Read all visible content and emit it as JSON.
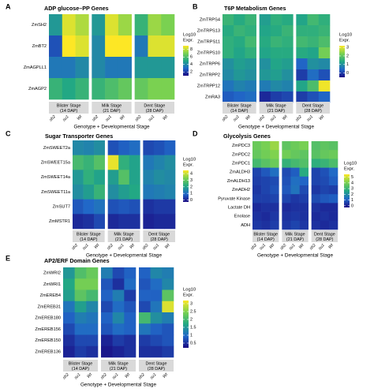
{
  "figure": {
    "x_axis_title": "Genotype + Developmental Stage",
    "genotypes": [
      "sh2",
      "su1",
      "WI"
    ],
    "stages": [
      [
        "Blister Stage",
        "(14 DAP)"
      ],
      [
        "Milk Stage",
        "(21 DAP)"
      ],
      [
        "Dent Stage",
        "(28 DAP)"
      ]
    ],
    "legend_title": [
      "Log10",
      "Expr."
    ],
    "colors": {
      "low": "#1a0a82",
      "mid1": "#2168c8",
      "mid2": "#22a884",
      "mid3": "#7ad151",
      "high": "#fde725",
      "facet_strip": "#d9d9d9"
    }
  },
  "chart_data": [
    {
      "type": "heatmap",
      "panel": "A",
      "title": "ADP glucose–PP Genes",
      "genes": [
        "ZmSH2",
        "ZmBT2",
        "ZmAGPLL1",
        "ZmAGP2"
      ],
      "legend_ticks": [
        8,
        6,
        4,
        2
      ],
      "zlim": [
        1,
        9
      ],
      "values": [
        [
          [
            4.5,
            8.5,
            7.8
          ],
          [
            4.5,
            8.5,
            7.5
          ],
          [
            5.5,
            7.5,
            7.0
          ]
        ],
        [
          [
            2.5,
            9.0,
            8.5
          ],
          [
            4.0,
            9.0,
            9.0
          ],
          [
            3.5,
            8.5,
            8.5
          ]
        ],
        [
          [
            3.5,
            3.5,
            4.0
          ],
          [
            4.0,
            3.5,
            3.5
          ],
          [
            4.5,
            4.5,
            4.5
          ]
        ],
        [
          [
            5.5,
            5.0,
            5.5
          ],
          [
            5.5,
            6.0,
            6.5
          ],
          [
            6.5,
            7.0,
            7.0
          ]
        ]
      ]
    },
    {
      "type": "heatmap",
      "panel": "B",
      "title": "T6P Metabolism Genes",
      "genes": [
        "ZmTRPS4",
        "ZmTRPS13",
        "ZmTRPS11",
        "ZmTRPS10",
        "ZmTRPP6",
        "ZmTRPP2",
        "ZmTRPP12",
        "ZmRA3"
      ],
      "legend_ticks": [
        3,
        2,
        1,
        0
      ],
      "zlim": [
        -0.5,
        3.2
      ],
      "values": [
        [
          [
            1.6,
            1.4,
            1.6
          ],
          [
            1.2,
            1.5,
            1.4
          ],
          [
            1.3,
            1.7,
            1.5
          ]
        ],
        [
          [
            1.4,
            1.6,
            1.5
          ],
          [
            1.3,
            1.4,
            1.6
          ],
          [
            1.5,
            1.5,
            1.6
          ]
        ],
        [
          [
            1.5,
            1.4,
            1.7
          ],
          [
            1.4,
            1.6,
            1.5
          ],
          [
            1.7,
            1.6,
            1.8
          ]
        ],
        [
          [
            1.5,
            1.3,
            1.5
          ],
          [
            1.3,
            1.4,
            1.4
          ],
          [
            1.4,
            1.3,
            2.2
          ]
        ],
        [
          [
            1.0,
            1.2,
            1.1
          ],
          [
            1.0,
            1.3,
            1.2
          ],
          [
            0.4,
            1.0,
            0.9
          ]
        ],
        [
          [
            0.9,
            1.1,
            1.0
          ],
          [
            1.1,
            1.2,
            1.0
          ],
          [
            0.0,
            0.5,
            0.2
          ]
        ],
        [
          [
            0.6,
            0.8,
            0.7
          ],
          [
            0.7,
            0.9,
            0.8
          ],
          [
            1.3,
            1.8,
            3.1
          ]
        ],
        [
          [
            0.3,
            0.4,
            0.5
          ],
          [
            -0.2,
            0.0,
            0.1
          ],
          [
            0.0,
            0.2,
            0.4
          ]
        ]
      ]
    },
    {
      "type": "heatmap",
      "panel": "C",
      "title": "Sugar Transporter Genes",
      "genes": [
        "ZmSWEET2a",
        "ZmSWEET15a",
        "ZmSWEET14a",
        "ZmSWEET11a",
        "ZmSUT7",
        "ZmMSTR1"
      ],
      "legend_ticks": [
        4,
        3,
        2,
        1,
        0
      ],
      "zlim": [
        -0.3,
        4.5
      ],
      "values": [
        [
          [
            1.5,
            1.4,
            1.6
          ],
          [
            0.6,
            0.8,
            1.0
          ],
          [
            0.5,
            0.6,
            0.8
          ]
        ],
        [
          [
            2.6,
            2.4,
            2.8
          ],
          [
            4.3,
            2.3,
            2.0
          ],
          [
            1.2,
            1.4,
            1.6
          ]
        ],
        [
          [
            1.8,
            2.3,
            2.0
          ],
          [
            1.9,
            2.8,
            2.0
          ],
          [
            1.4,
            1.6,
            1.5
          ]
        ],
        [
          [
            1.6,
            1.9,
            2.4
          ],
          [
            1.6,
            1.9,
            2.1
          ],
          [
            1.2,
            1.3,
            1.4
          ]
        ],
        [
          [
            0.7,
            0.9,
            1.1
          ],
          [
            0.6,
            0.7,
            0.6
          ],
          [
            0.2,
            0.3,
            0.3
          ]
        ],
        [
          [
            0.1,
            0.2,
            0.5
          ],
          [
            0.1,
            0.2,
            0.2
          ],
          [
            0.0,
            0.1,
            0.1
          ]
        ]
      ]
    },
    {
      "type": "heatmap",
      "panel": "D",
      "title": "Glycolysis Genes",
      "genes": [
        "ZmPDC3",
        "ZmPDC2",
        "ZmPDC1",
        "ZmALDH3",
        "ZmALDH13",
        "ZmADH2",
        "Pyruvate Kinase",
        "Lactate DH",
        "Enolase",
        "ADH"
      ],
      "legend_ticks": [
        5,
        4,
        3,
        2,
        1,
        0
      ],
      "zlim": [
        -0.3,
        5.5
      ],
      "values": [
        [
          [
            3.8,
            4.0,
            4.4
          ],
          [
            3.6,
            3.8,
            4.0
          ],
          [
            3.4,
            3.6,
            3.5
          ]
        ],
        [
          [
            3.7,
            3.9,
            4.1
          ],
          [
            3.9,
            3.7,
            3.6
          ],
          [
            3.5,
            3.7,
            3.8
          ]
        ],
        [
          [
            3.2,
            3.5,
            3.8
          ],
          [
            2.9,
            3.2,
            3.4
          ],
          [
            2.8,
            3.0,
            3.3
          ]
        ],
        [
          [
            0.6,
            0.9,
            1.3
          ],
          [
            0.7,
            1.0,
            2.7
          ],
          [
            0.6,
            0.8,
            1.2
          ]
        ],
        [
          [
            0.5,
            0.6,
            0.7
          ],
          [
            0.8,
            1.3,
            1.1
          ],
          [
            0.6,
            0.7,
            1.0
          ]
        ],
        [
          [
            0.4,
            0.6,
            0.8
          ],
          [
            0.9,
            1.4,
            0.7
          ],
          [
            0.4,
            0.6,
            0.5
          ]
        ],
        [
          [
            0.5,
            0.5,
            0.6
          ],
          [
            0.6,
            0.4,
            0.5
          ],
          [
            0.7,
            0.9,
            1.0
          ]
        ],
        [
          [
            0.2,
            0.3,
            0.3
          ],
          [
            0.2,
            0.3,
            0.3
          ],
          [
            0.3,
            0.2,
            0.2
          ]
        ],
        [
          [
            0.3,
            0.2,
            0.4
          ],
          [
            0.3,
            0.4,
            0.3
          ],
          [
            0.2,
            0.3,
            0.2
          ]
        ],
        [
          [
            0.4,
            0.3,
            0.5
          ],
          [
            0.4,
            0.6,
            0.4
          ],
          [
            0.3,
            0.2,
            0.3
          ]
        ]
      ]
    },
    {
      "type": "heatmap",
      "panel": "E",
      "title": "AP2/ERF Domain Genes",
      "genes": [
        "ZmWRI2",
        "ZmWRI1",
        "ZmEREB4",
        "ZmEREB31",
        "ZmEREB180",
        "ZmEREB156",
        "ZmEREB150",
        "ZmEREB136"
      ],
      "legend_ticks": [
        3.0,
        2.5,
        2.0,
        1.5,
        1.0,
        0.5
      ],
      "zlim": [
        0.2,
        3.2
      ],
      "values": [
        [
          [
            1.5,
            2.1,
            2.3
          ],
          [
            1.2,
            0.7,
            0.9
          ],
          [
            0.9,
            1.3,
            1.2
          ]
        ],
        [
          [
            1.7,
            2.4,
            2.4
          ],
          [
            0.8,
            0.5,
            1.0
          ],
          [
            0.8,
            1.0,
            1.3
          ]
        ],
        [
          [
            1.6,
            2.2,
            2.0
          ],
          [
            0.9,
            1.2,
            0.6
          ],
          [
            0.9,
            0.9,
            2.2
          ]
        ],
        [
          [
            1.1,
            1.6,
            1.3
          ],
          [
            0.7,
            1.0,
            0.8
          ],
          [
            0.7,
            1.1,
            3.0
          ]
        ],
        [
          [
            0.9,
            1.2,
            1.1
          ],
          [
            0.9,
            1.3,
            0.9
          ],
          [
            2.0,
            1.4,
            1.2
          ]
        ],
        [
          [
            0.7,
            1.0,
            1.0
          ],
          [
            0.8,
            1.0,
            0.9
          ],
          [
            1.1,
            0.9,
            0.8
          ]
        ],
        [
          [
            0.5,
            0.7,
            0.7
          ],
          [
            0.4,
            0.6,
            0.5
          ],
          [
            0.6,
            0.7,
            0.8
          ]
        ],
        [
          [
            0.4,
            0.6,
            0.5
          ],
          [
            0.3,
            0.4,
            0.5
          ],
          [
            0.5,
            0.5,
            0.6
          ]
        ]
      ]
    }
  ]
}
